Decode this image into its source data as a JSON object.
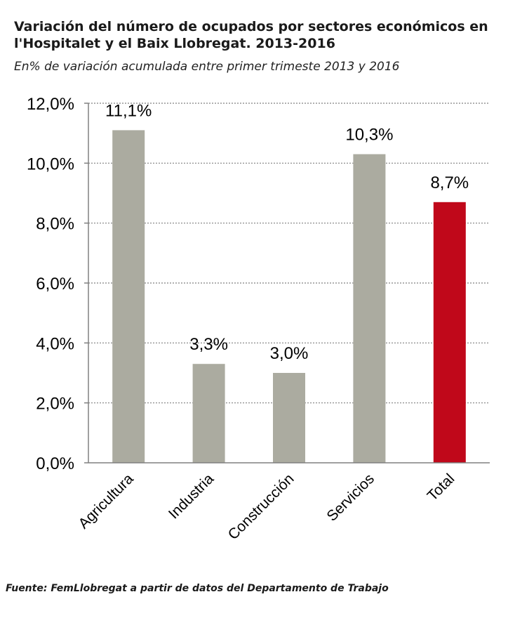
{
  "chart_data": {
    "type": "bar",
    "title": "Variación del número de ocupados por sectores económicos en l'Hospitalet y el Baix Llobregat. 2013-2016",
    "subtitle": "En% de variación acumulada entre primer trimeste 2013 y 2016",
    "categories": [
      "Agricultura",
      "Industria",
      "Construcción",
      "Servicios",
      "Total"
    ],
    "values": [
      11.1,
      3.3,
      3.0,
      10.3,
      8.7
    ],
    "data_labels": [
      "11,1%",
      "3,3%",
      "3,0%",
      "10,3%",
      "8,7%"
    ],
    "bar_colors": [
      "#ababa0",
      "#ababa0",
      "#ababa0",
      "#ababa0",
      "#c0081a"
    ],
    "ylim": [
      0,
      12
    ],
    "yticks": [
      0,
      2,
      4,
      6,
      8,
      10,
      12
    ],
    "ytick_labels": [
      "0,0%",
      "2,0%",
      "4,0%",
      "6,0%",
      "8,0%",
      "10,0%",
      "12,0%"
    ],
    "grid": true,
    "xlabel": "",
    "ylabel": ""
  },
  "source": "Fuente: FemLlobregat a partir de datos del Departamento de Trabajo"
}
